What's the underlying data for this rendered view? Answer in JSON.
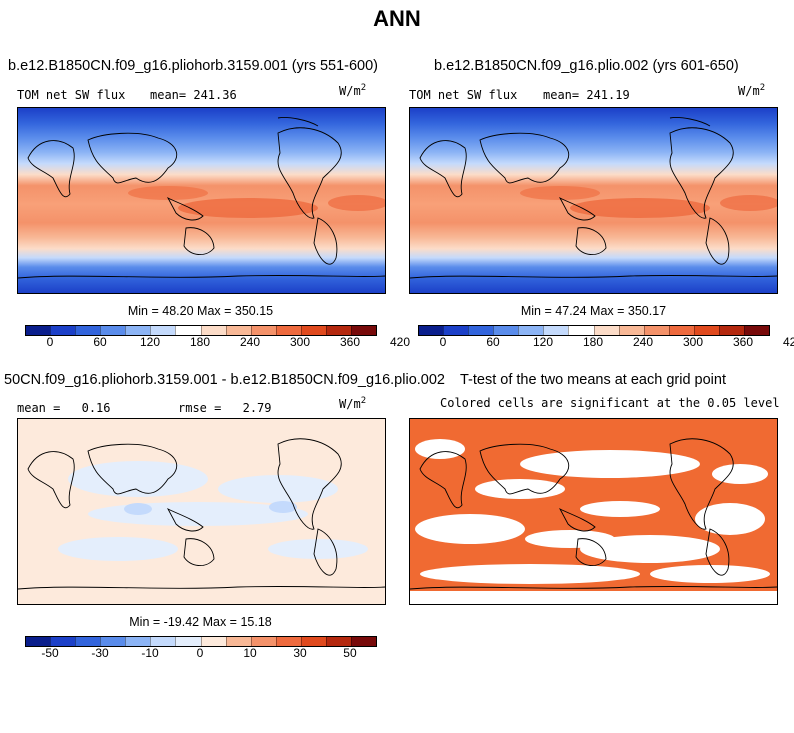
{
  "title": "ANN",
  "panel1": {
    "title": "b.e12.B1850CN.f09_g16.pliohorb.3159.001 (yrs 551-600)",
    "variable": "TOM net SW flux",
    "mean_label": "mean=",
    "mean": "241.36",
    "units_base": "W/m",
    "units_exp": "2",
    "min_label": "Min =",
    "min": "48.20",
    "max_label": "Max =",
    "max": "350.15"
  },
  "panel2": {
    "title": "b.e12.B1850CN.f09_g16.plio.002 (yrs 601-650)",
    "variable": "TOM net SW flux",
    "mean_label": "mean=",
    "mean": "241.19",
    "units_base": "W/m",
    "units_exp": "2",
    "min_label": "Min =",
    "min": "47.24",
    "max_label": "Max =",
    "max": "350.17"
  },
  "panel3": {
    "title": "50CN.f09_g16.pliohorb.3159.001 - b.e12.B1850CN.f09_g16.plio.002",
    "mean_label": "mean =",
    "mean": "0.16",
    "rmse_label": "rmse =",
    "rmse": "2.79",
    "units_base": "W/m",
    "units_exp": "2",
    "min_label": "Min =",
    "min": "-19.42",
    "max_label": "Max =",
    "max": "15.18"
  },
  "panel4": {
    "title": "T-test of the two means at each grid point",
    "subtitle": "Colored cells are significant at the 0.05 level",
    "significant_color": "#f06a32"
  },
  "colorbar_abs": {
    "colors": [
      "#0a1e8c",
      "#1c40c8",
      "#3264dc",
      "#5a8ceb",
      "#8cb4f5",
      "#c4dafc",
      "#ffffff",
      "#fcdcc8",
      "#f8b896",
      "#f4926a",
      "#ee6a3e",
      "#e04a1e",
      "#b4280e",
      "#780a0a"
    ],
    "labels": [
      "0",
      "60",
      "120",
      "180",
      "240",
      "300",
      "360",
      "420"
    ]
  },
  "colorbar_diff": {
    "colors": [
      "#0a1e8c",
      "#1c40c8",
      "#3264dc",
      "#5a8ceb",
      "#8cb4f5",
      "#c4dafc",
      "#e4eefc",
      "#fdeadc",
      "#f8b896",
      "#f4926a",
      "#ee6a3e",
      "#e04a1e",
      "#b4280e",
      "#780a0a"
    ],
    "labels": [
      "-50",
      "-30",
      "-10",
      "0",
      "10",
      "30",
      "50"
    ]
  }
}
